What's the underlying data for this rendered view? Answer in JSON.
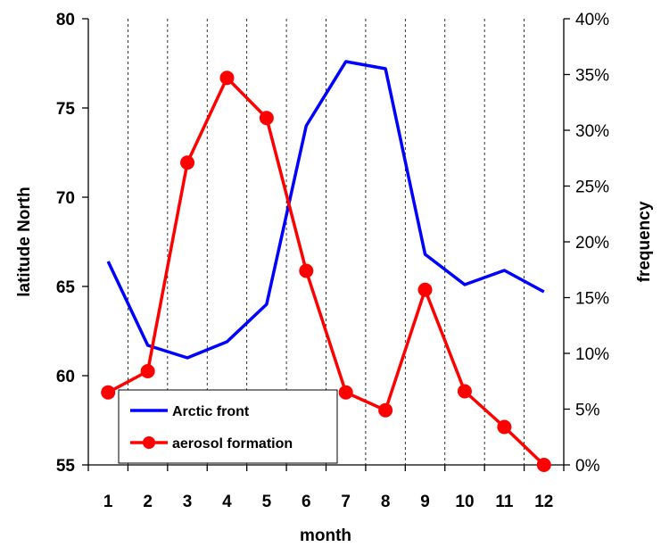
{
  "chart_data": {
    "type": "line",
    "categories": [
      "1",
      "2",
      "3",
      "4",
      "5",
      "6",
      "7",
      "8",
      "9",
      "10",
      "11",
      "12"
    ],
    "xlabel": "month",
    "ylabel_left": "latitude North",
    "ylabel_right": "frequency",
    "ylim_left": [
      55,
      80
    ],
    "yticks_left": [
      "55",
      "60",
      "65",
      "70",
      "75",
      "80"
    ],
    "ylim_right": [
      0,
      0.4
    ],
    "yticks_right": [
      "0%",
      "5%",
      "10%",
      "15%",
      "20%",
      "25%",
      "30%",
      "35%",
      "40%"
    ],
    "grid": "vertical dashed lines between months",
    "legend_position": "bottom-left",
    "series": [
      {
        "name": "Arctic front",
        "axis": "left",
        "color": "#0000ff",
        "marker": "none",
        "values": [
          66.4,
          61.7,
          61.0,
          61.9,
          64.0,
          74.0,
          77.6,
          77.2,
          66.8,
          65.1,
          65.9,
          64.7
        ]
      },
      {
        "name": "aerosol formation",
        "axis": "right",
        "color": "#ff0000",
        "marker": "circle",
        "values": [
          0.065,
          0.084,
          0.271,
          0.347,
          0.311,
          0.174,
          0.065,
          0.049,
          0.157,
          0.066,
          0.034,
          0.0
        ]
      }
    ]
  }
}
